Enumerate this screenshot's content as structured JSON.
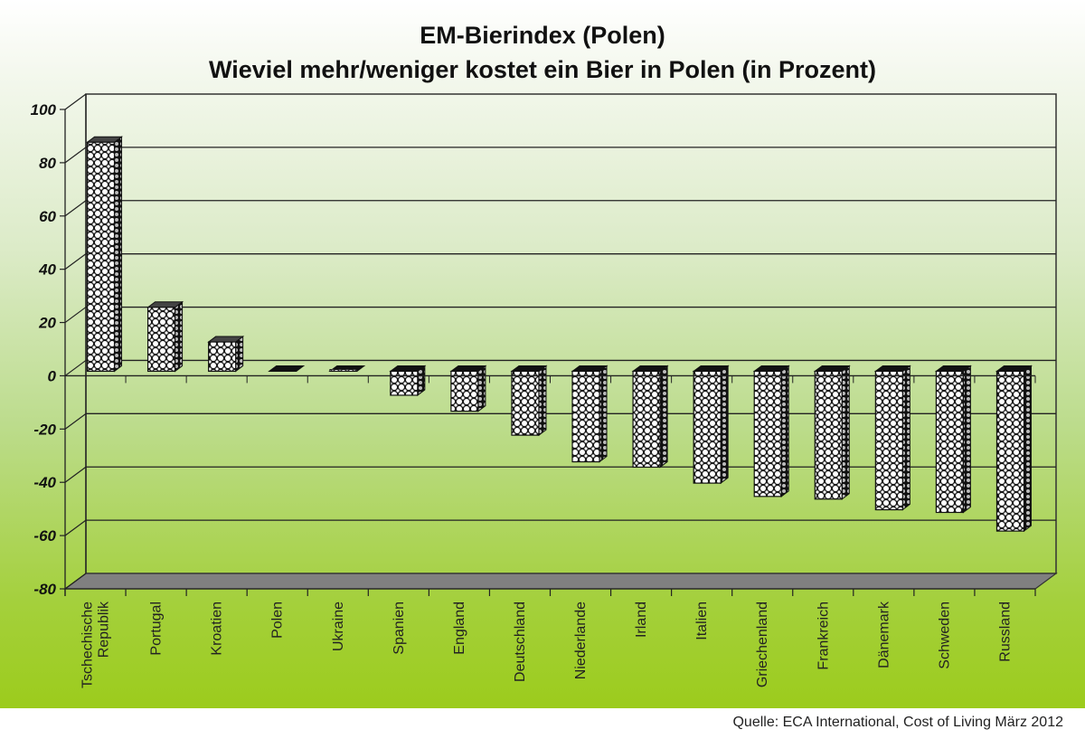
{
  "title": "EM-Bierindex (Polen)",
  "subtitle": "Wieviel mehr/weniger kostet ein Bier in Polen (in Prozent)",
  "source": "Quelle: ECA International, Cost of Living März 2012",
  "colors": {
    "background_top": "#ffffff",
    "background_bottom": "#9ccc1c",
    "floor": "#808080",
    "bar_pattern_dark": "#111111",
    "bar_pattern_light": "#ffffff"
  },
  "chart_data": {
    "type": "bar",
    "title": "EM-Bierindex (Polen)",
    "subtitle": "Wieviel mehr/weniger kostet ein Bier in Polen (in Prozent)",
    "xlabel": "",
    "ylabel": "",
    "ylim": [
      -80,
      100
    ],
    "yticks": [
      100,
      80,
      60,
      40,
      20,
      0,
      -20,
      -40,
      -60,
      -80
    ],
    "grid": true,
    "style": "3d",
    "legend": null,
    "categories": [
      "Tschechische Republik",
      "Portugal",
      "Kroatien",
      "Polen",
      "Ukraine",
      "Spanien",
      "England",
      "Deutschland",
      "Niederlande",
      "Irland",
      "Italien",
      "Griechenland",
      "Frankreich",
      "Dänemark",
      "Schweden",
      "Russland"
    ],
    "values": [
      86,
      24,
      11,
      0,
      1,
      -9,
      -15,
      -24,
      -34,
      -36,
      -42,
      -47,
      -48,
      -52,
      -53,
      -60
    ],
    "annotations": [
      "Quelle: ECA International, Cost of Living März 2012"
    ]
  }
}
